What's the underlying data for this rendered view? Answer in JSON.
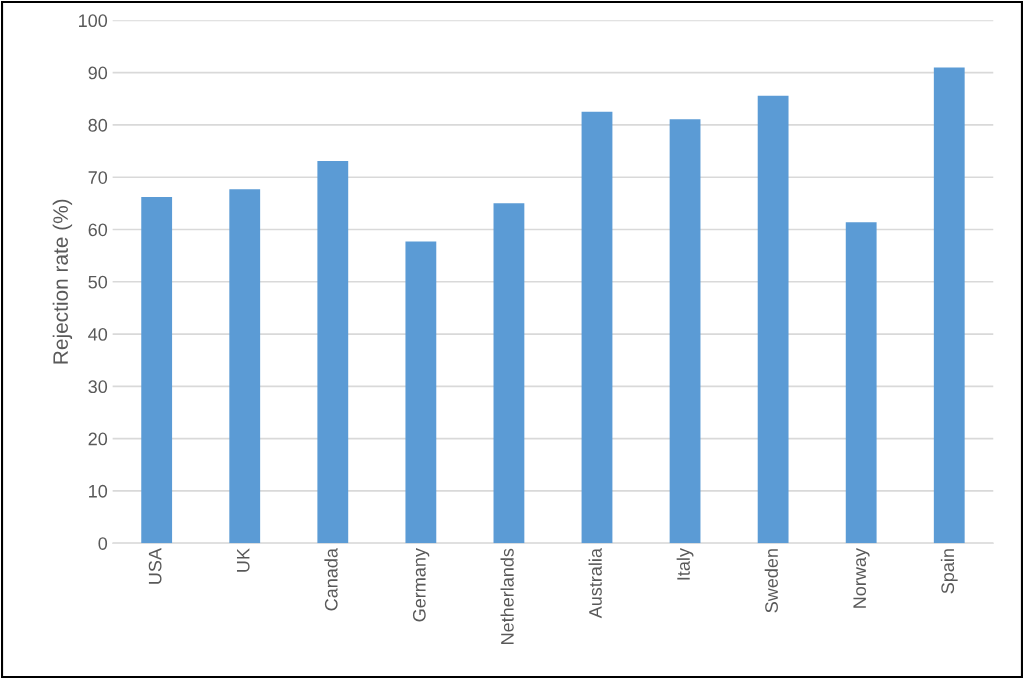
{
  "chart_data": {
    "type": "bar",
    "ylabel": "Rejection rate (%)",
    "categories": [
      "USA",
      "UK",
      "Canada",
      "Germany",
      "Netherlands",
      "Australia",
      "Italy",
      "Sweden",
      "Norway",
      "Spain"
    ],
    "values": [
      66.2,
      67.7,
      73.1,
      57.7,
      65.0,
      82.5,
      81.1,
      85.6,
      61.4,
      91.0
    ],
    "color": "#5b9bd5",
    "ylim": [
      0,
      100
    ],
    "yticks": [
      0,
      10,
      20,
      30,
      40,
      50,
      60,
      70,
      80,
      90,
      100
    ],
    "grid": "y"
  }
}
